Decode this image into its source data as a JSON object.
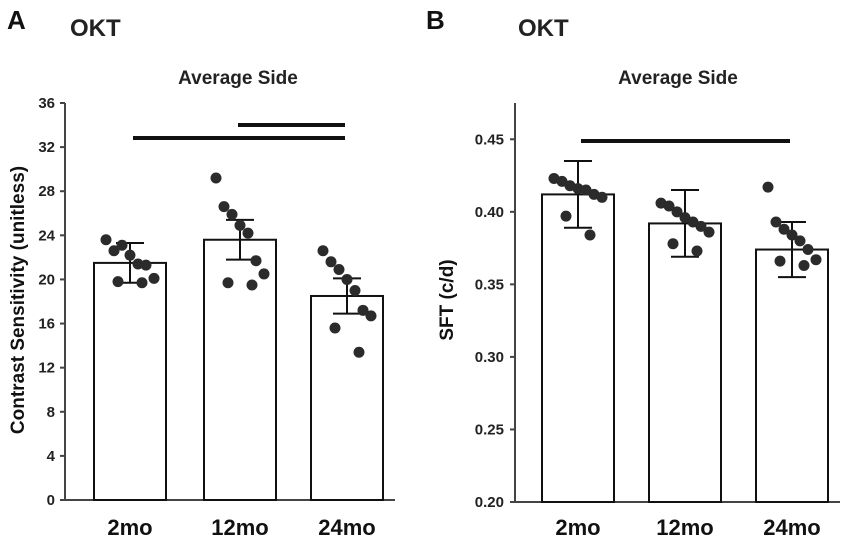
{
  "chart_data": [
    {
      "id": "A",
      "panel_label": "A",
      "type": "bar",
      "title": "OKT",
      "subtitle": "Average Side",
      "xlabel": "",
      "ylabel": "Contrast Sensitivity (unitless)",
      "ylim": [
        0,
        36
      ],
      "yticks": [
        0,
        4,
        8,
        12,
        16,
        20,
        24,
        28,
        32,
        36
      ],
      "ytick_labels": [
        "0",
        "4",
        "8",
        "12",
        "16",
        "20",
        "24",
        "28",
        "32",
        "36"
      ],
      "categories": [
        "2mo",
        "12mo",
        "24mo"
      ],
      "values": [
        21.5,
        23.6,
        18.5
      ],
      "errors": [
        1.8,
        1.8,
        1.6
      ],
      "points": [
        [
          23.6,
          22.6,
          23.1,
          22.2,
          21.4,
          21.3,
          20.1,
          19.8,
          19.7
        ],
        [
          29.2,
          26.6,
          25.9,
          24.9,
          24.2,
          21.7,
          20.5,
          19.7,
          19.5
        ],
        [
          22.6,
          21.6,
          20.9,
          20.0,
          19.0,
          17.2,
          16.7,
          15.6,
          13.4
        ]
      ],
      "significance": [
        {
          "from": 0,
          "to": 2
        },
        {
          "from": 1,
          "to": 2
        }
      ]
    },
    {
      "id": "B",
      "panel_label": "B",
      "type": "bar",
      "title": "OKT",
      "subtitle": "Average Side",
      "xlabel": "",
      "ylabel": "SFT (c/d)",
      "ylim": [
        0.2,
        0.475
      ],
      "yticks": [
        0.2,
        0.25,
        0.3,
        0.35,
        0.4,
        0.45
      ],
      "ytick_labels": [
        "0.20",
        "0.25",
        "0.30",
        "0.35",
        "0.40",
        "0.45"
      ],
      "categories": [
        "2mo",
        "12mo",
        "24mo"
      ],
      "values": [
        0.412,
        0.392,
        0.374
      ],
      "errors": [
        0.023,
        0.023,
        0.019
      ],
      "points": [
        [
          0.423,
          0.421,
          0.418,
          0.416,
          0.415,
          0.412,
          0.41,
          0.397,
          0.384
        ],
        [
          0.406,
          0.404,
          0.4,
          0.396,
          0.393,
          0.39,
          0.386,
          0.378,
          0.373
        ],
        [
          0.417,
          0.393,
          0.388,
          0.384,
          0.38,
          0.374,
          0.367,
          0.366,
          0.363
        ]
      ],
      "significance": [
        {
          "from": 0,
          "to": 2
        }
      ]
    }
  ]
}
